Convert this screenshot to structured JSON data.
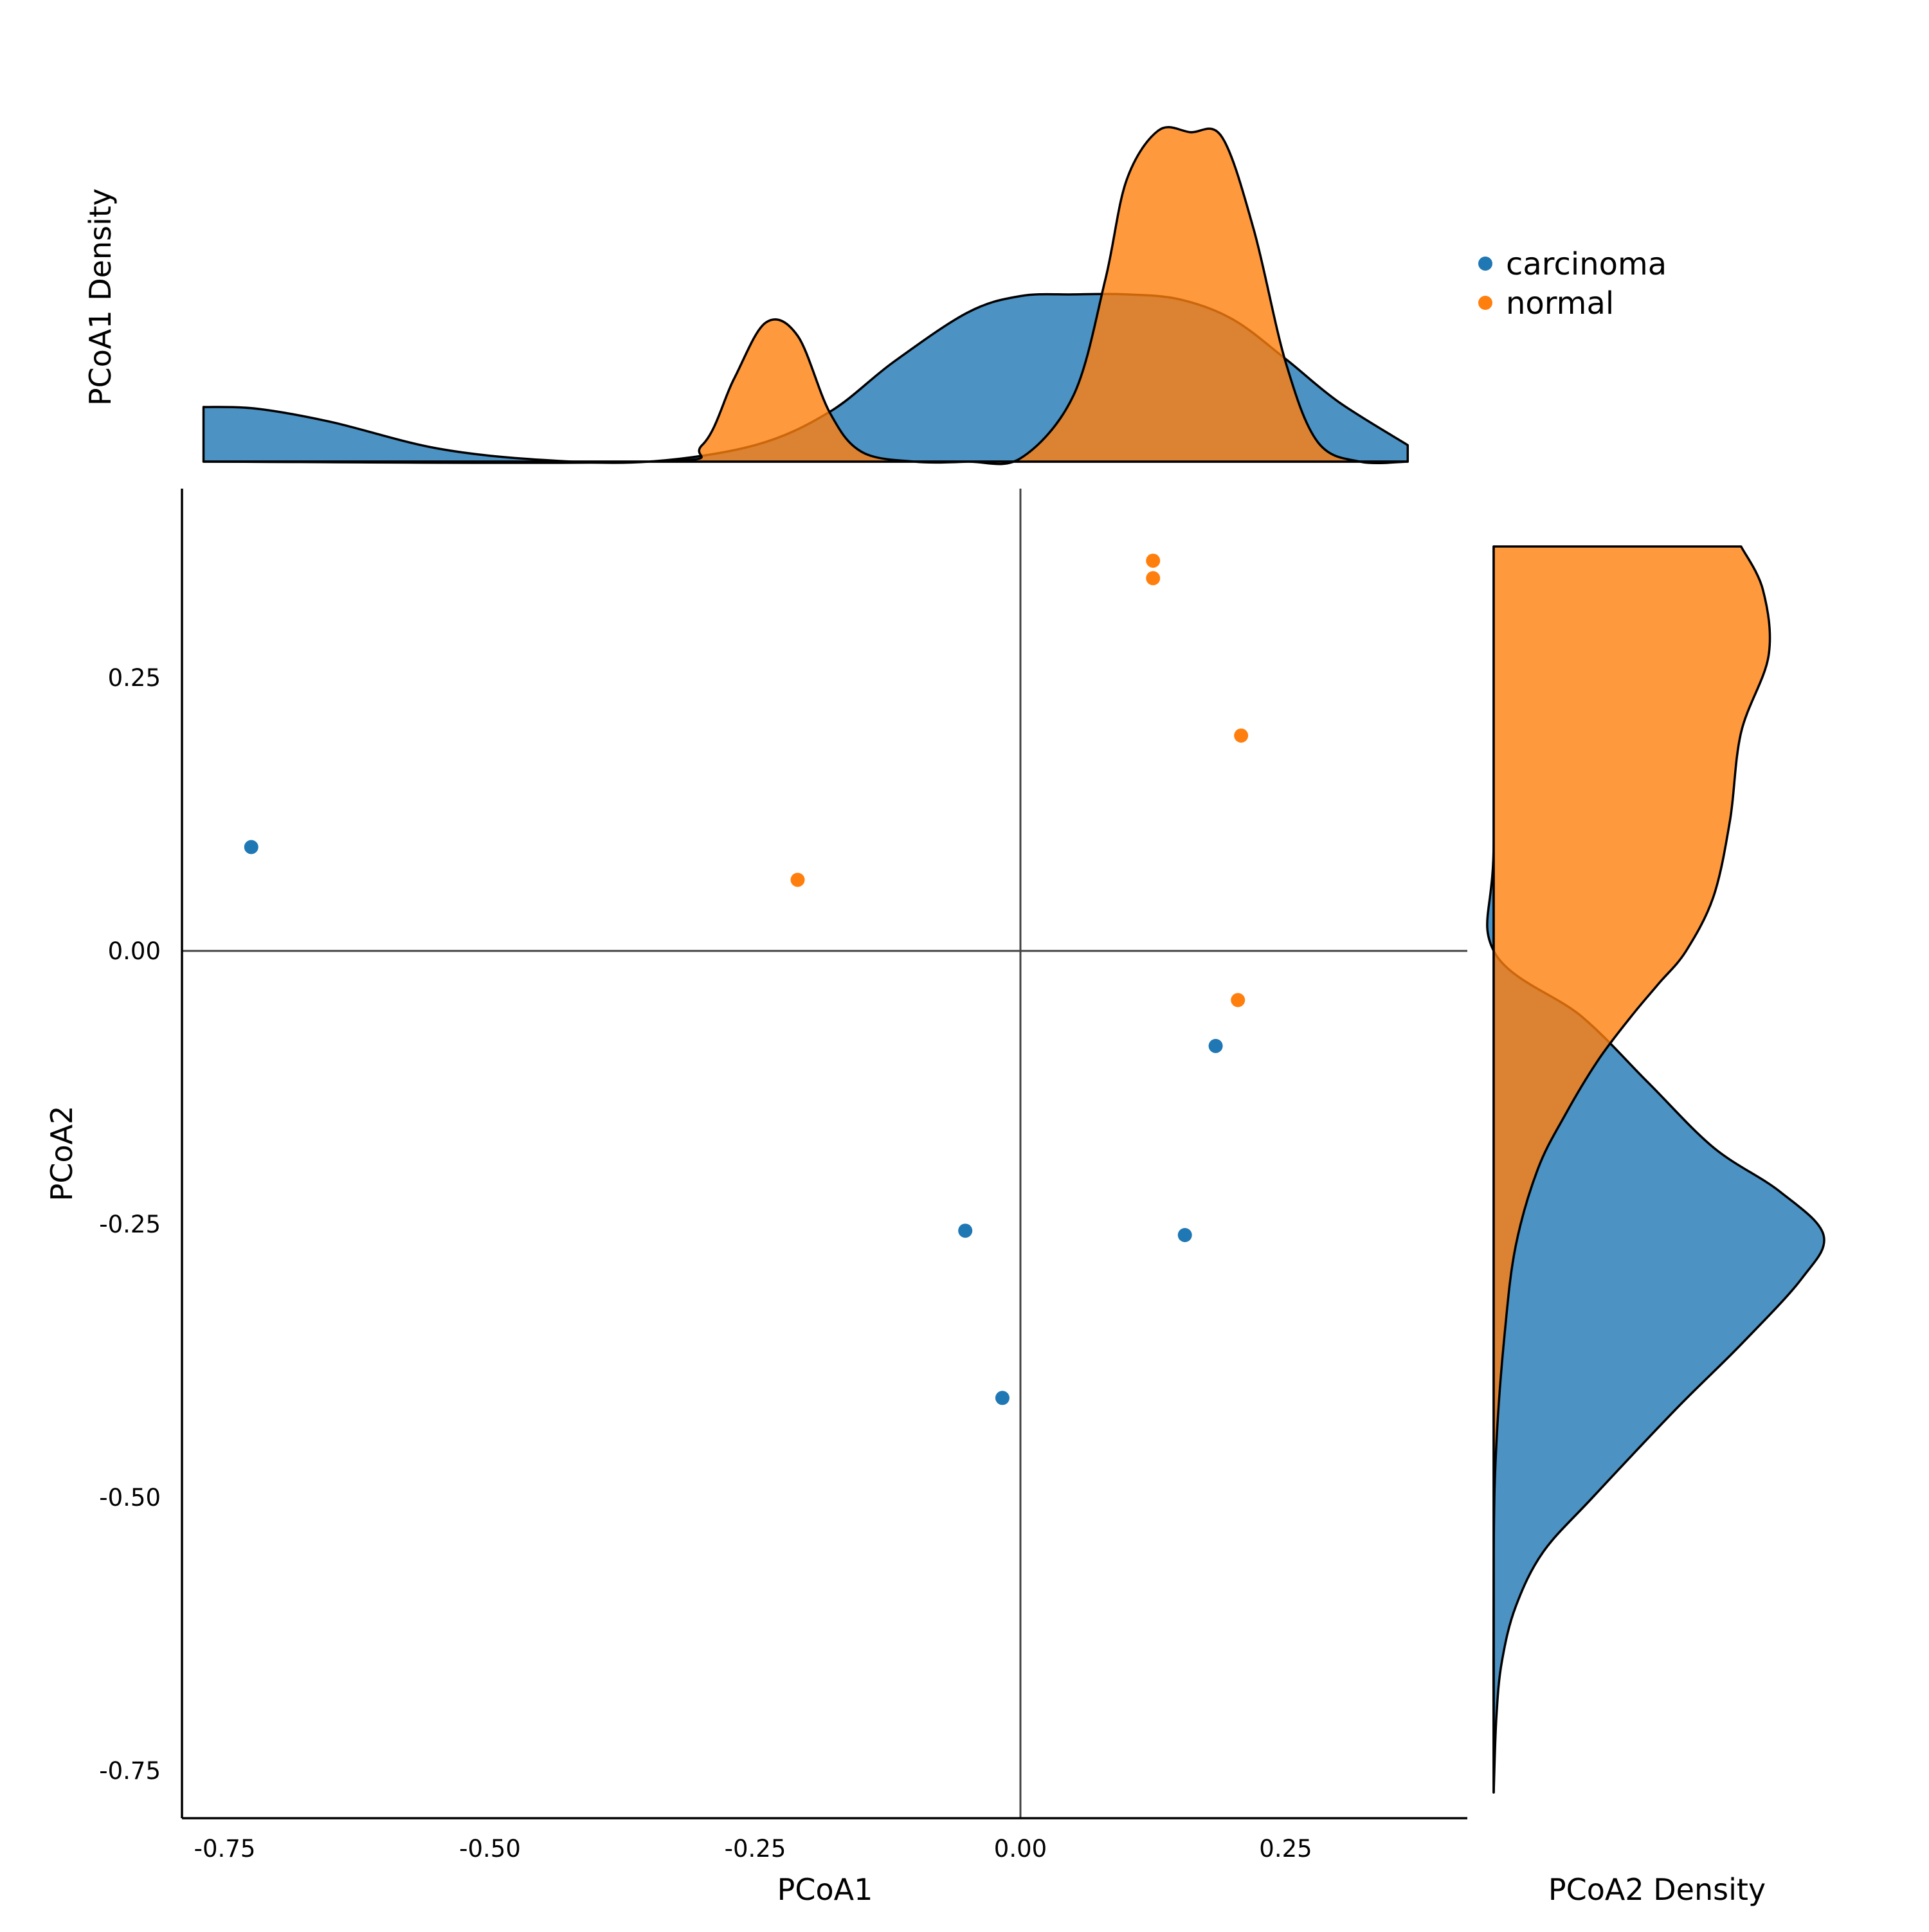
{
  "chart_data": {
    "type": "scatter",
    "title": "",
    "xlabel": "PCoA1",
    "ylabel": "PCoA2",
    "xlim": [
      -0.79,
      0.42
    ],
    "ylim": [
      -0.795,
      0.425
    ],
    "xticks": [
      "-0.75",
      "-0.50",
      "-0.25",
      "0.00",
      "0.25"
    ],
    "xtick_values": [
      -0.75,
      -0.5,
      -0.25,
      0.0,
      0.25
    ],
    "yticks": [
      "0.25",
      "0.00",
      "-0.25",
      "-0.50",
      "-0.75"
    ],
    "ytick_values": [
      0.25,
      0.0,
      -0.25,
      -0.5,
      -0.75
    ],
    "reference_lines": {
      "x": 0.0,
      "y": 0.0
    },
    "grid": false,
    "legend_position": "top-right",
    "series": [
      {
        "name": "carcinoma",
        "color": "#1f77b4",
        "points": [
          {
            "x": -0.725,
            "y": 0.095
          },
          {
            "x": -0.052,
            "y": -0.256
          },
          {
            "x": -0.017,
            "y": -0.409
          },
          {
            "x": 0.155,
            "y": -0.26
          },
          {
            "x": 0.184,
            "y": -0.087
          }
        ]
      },
      {
        "name": "normal",
        "color": "#ff7f0e",
        "points": [
          {
            "x": -0.21,
            "y": 0.065
          },
          {
            "x": 0.125,
            "y": 0.357
          },
          {
            "x": 0.125,
            "y": 0.341
          },
          {
            "x": 0.208,
            "y": 0.197
          },
          {
            "x": 0.205,
            "y": -0.045
          }
        ]
      }
    ],
    "marginals": {
      "top": {
        "ylabel": "PCoA1 Density",
        "type": "kde",
        "x_range": [
          -0.77,
          0.365
        ],
        "curves": [
          {
            "name": "carcinoma",
            "color": "#1f77b4",
            "x": [
              -0.77,
              -0.72,
              -0.65,
              -0.55,
              -0.45,
              -0.35,
              -0.25,
              -0.18,
              -0.12,
              -0.05,
              0.0,
              0.05,
              0.1,
              0.15,
              0.2,
              0.25,
              0.3,
              0.365
            ],
            "density": [
              0.165,
              0.16,
              0.12,
              0.04,
              0.005,
              0.0,
              0.05,
              0.15,
              0.3,
              0.45,
              0.5,
              0.505,
              0.505,
              0.49,
              0.43,
              0.31,
              0.18,
              0.05
            ]
          },
          {
            "name": "normal",
            "color": "#ff7f0e",
            "x": [
              -0.77,
              -0.35,
              -0.3,
              -0.27,
              -0.24,
              -0.21,
              -0.18,
              -0.15,
              -0.1,
              -0.05,
              0.0,
              0.05,
              0.08,
              0.1,
              0.13,
              0.16,
              0.19,
              0.22,
              0.25,
              0.28,
              0.32,
              0.365
            ],
            "density": [
              0.0,
              0.0,
              0.05,
              0.25,
              0.42,
              0.38,
              0.15,
              0.03,
              0.0,
              0.0,
              0.01,
              0.2,
              0.55,
              0.85,
              1.0,
              0.995,
              0.98,
              0.7,
              0.3,
              0.06,
              0.0,
              0.0
            ]
          }
        ]
      },
      "right": {
        "xlabel": "PCoA2 Density",
        "type": "kde",
        "y_range": [
          -0.77,
          0.37
        ],
        "curves": [
          {
            "name": "carcinoma",
            "color": "#1f77b4",
            "y": [
              0.37,
              0.1,
              0.0,
              -0.06,
              -0.12,
              -0.18,
              -0.22,
              -0.26,
              -0.3,
              -0.36,
              -0.42,
              -0.5,
              -0.55,
              -0.6,
              -0.65,
              -0.7,
              -0.77
            ],
            "density": [
              0.0,
              0.0,
              0.0,
              0.16,
              0.28,
              0.4,
              0.52,
              0.6,
              0.56,
              0.45,
              0.33,
              0.18,
              0.09,
              0.04,
              0.015,
              0.005,
              0.0
            ]
          },
          {
            "name": "normal",
            "color": "#ff7f0e",
            "y": [
              0.37,
              0.33,
              0.27,
              0.2,
              0.12,
              0.05,
              0.0,
              -0.03,
              -0.06,
              -0.1,
              -0.15,
              -0.2,
              -0.27,
              -0.35,
              -0.45,
              -0.55,
              -0.77
            ],
            "density": [
              0.45,
              0.49,
              0.5,
              0.45,
              0.43,
              0.4,
              0.35,
              0.3,
              0.25,
              0.19,
              0.13,
              0.08,
              0.04,
              0.02,
              0.005,
              0.0,
              0.0
            ]
          }
        ]
      }
    }
  }
}
